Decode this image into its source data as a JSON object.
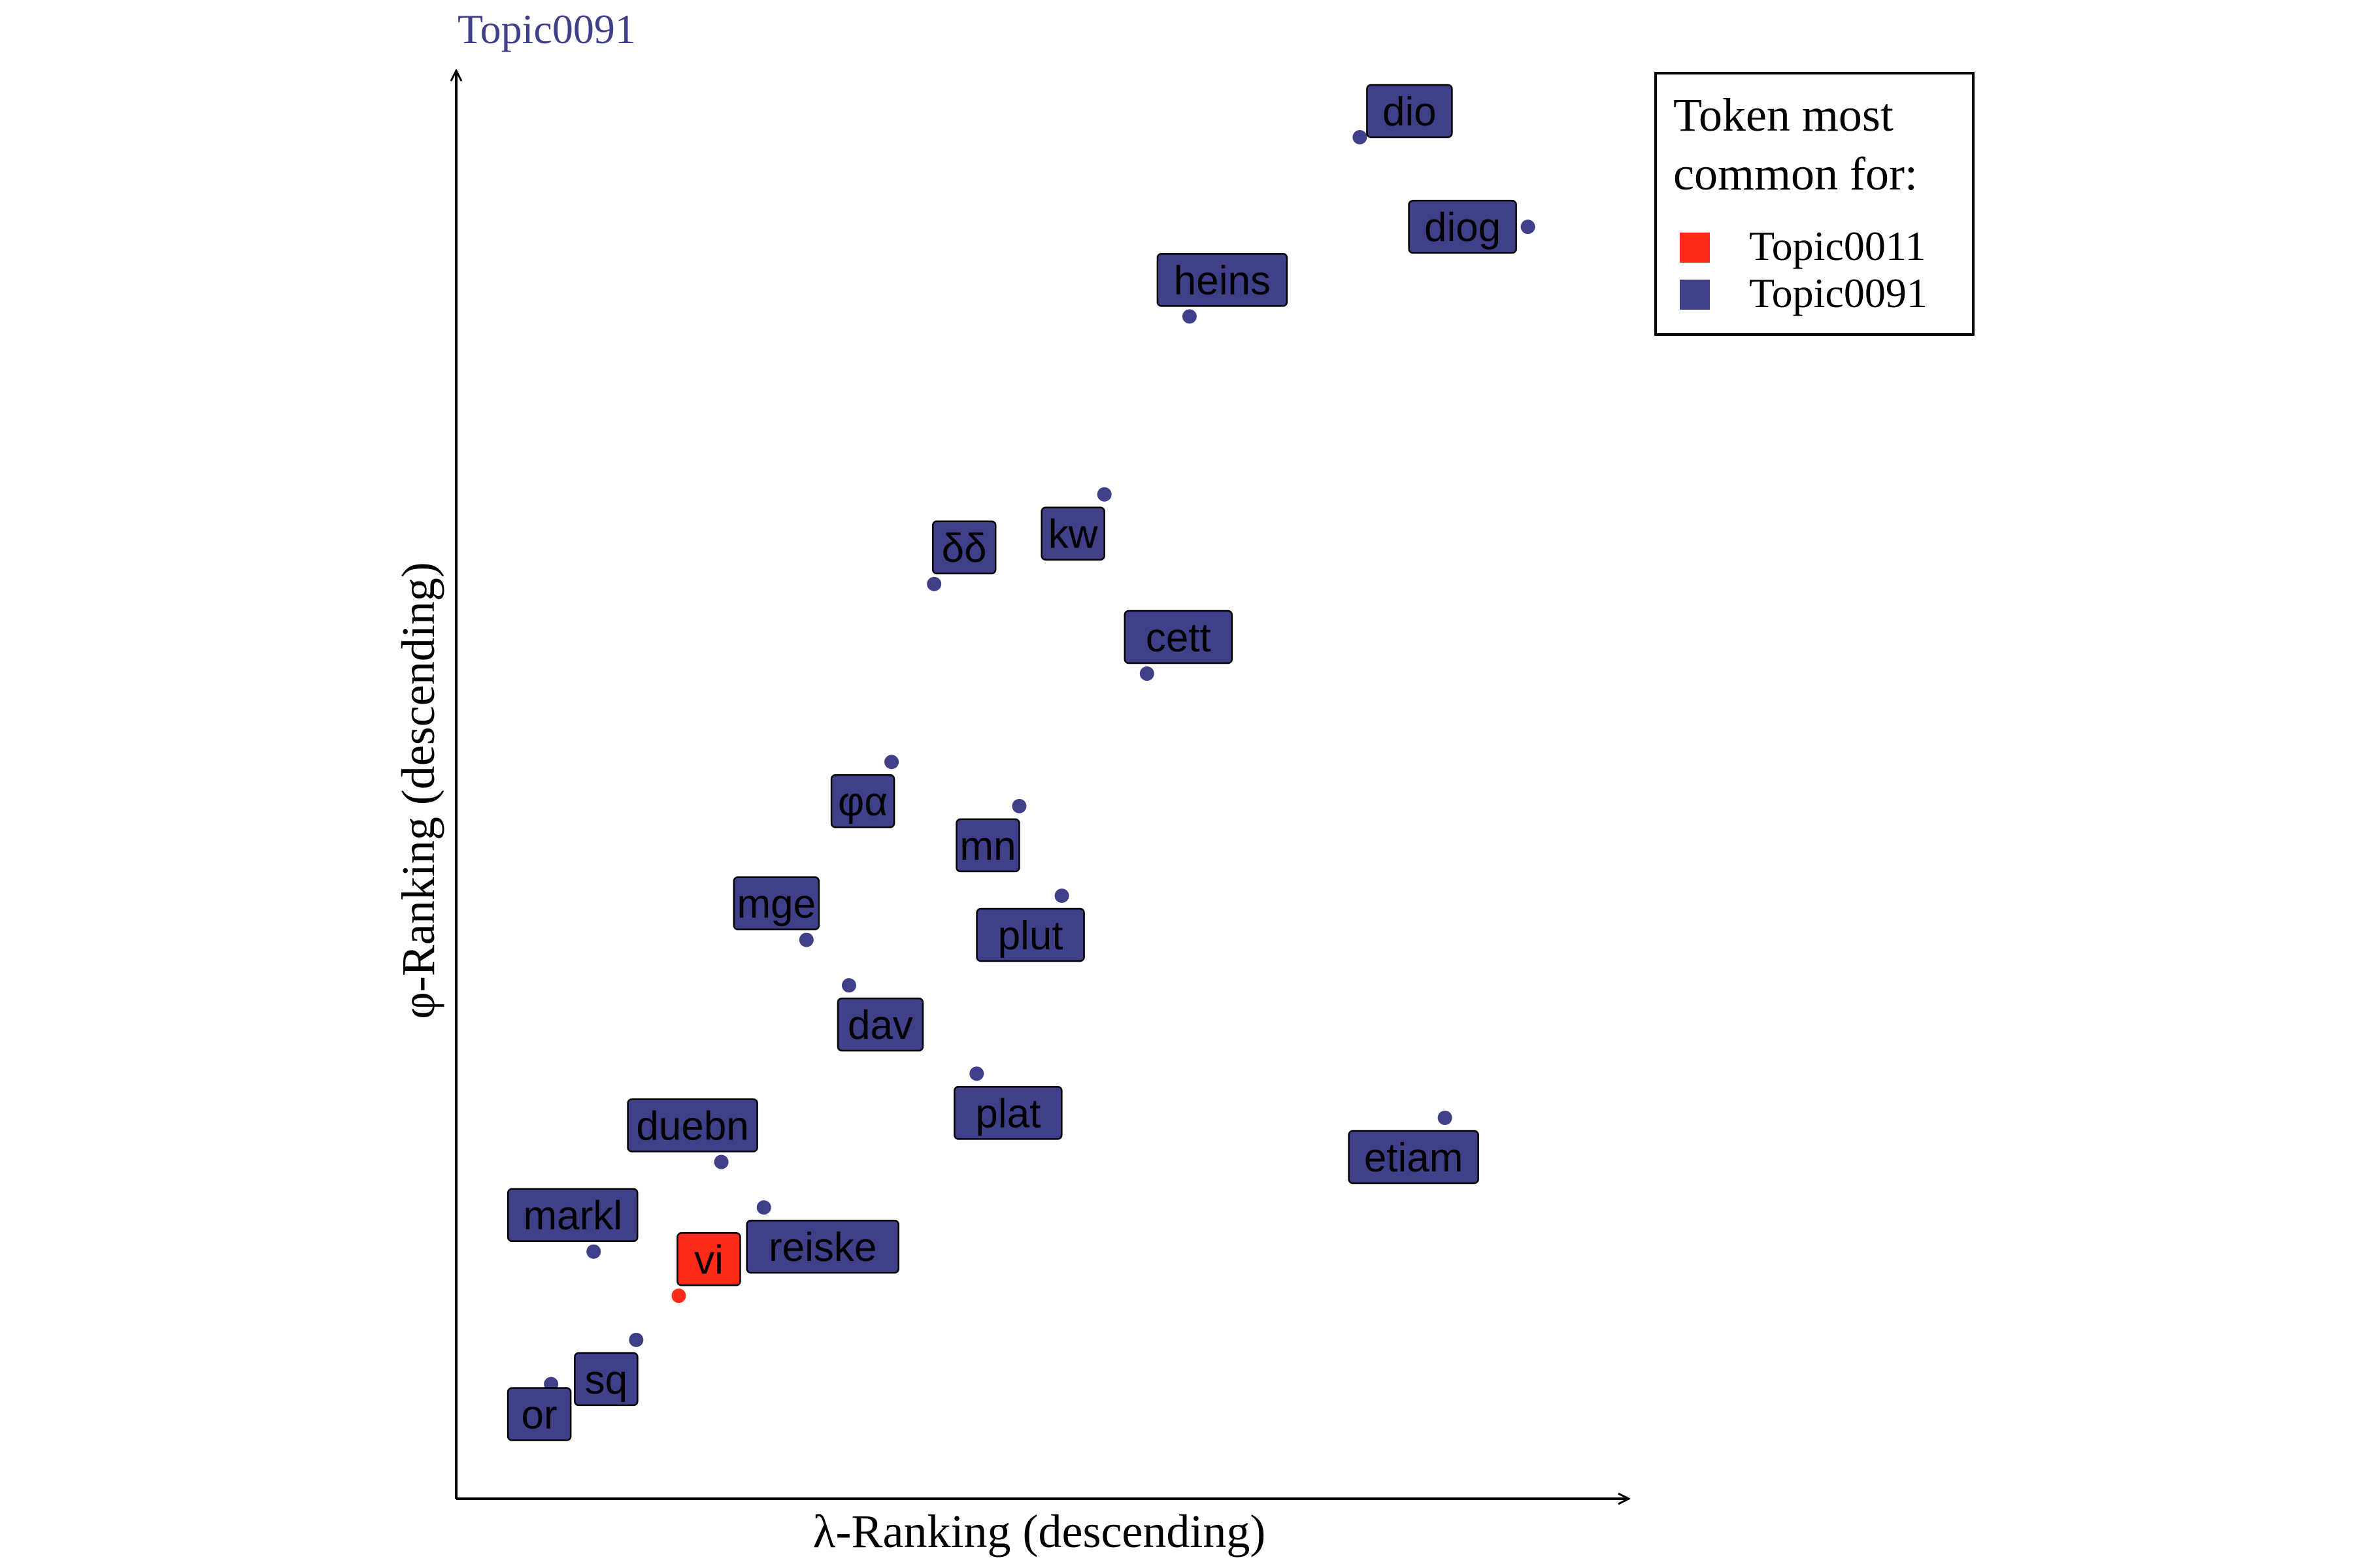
{
  "chart_data": {
    "type": "scatter",
    "title": "Topic0091",
    "xlabel": "λ-Ranking (descending)",
    "ylabel": "φ-Ranking (descending)",
    "xlim": [
      0,
      100
    ],
    "ylim": [
      0,
      100
    ],
    "legend": {
      "title_lines": [
        "Token most",
        "common for:"
      ],
      "placement": "top-right",
      "entries": [
        {
          "name": "Topic0011",
          "color": "#ff2a1a"
        },
        {
          "name": "Topic0091",
          "color": "#3f3f8a"
        }
      ]
    },
    "points": [
      {
        "label": "dio",
        "x": 80.0,
        "y": 100.0,
        "series": "Topic0091"
      },
      {
        "label": "diog",
        "x": 95.8,
        "y": 93.1,
        "series": "Topic0091"
      },
      {
        "label": "heins",
        "x": 64.0,
        "y": 86.2,
        "series": "Topic0091"
      },
      {
        "label": "kw",
        "x": 56.0,
        "y": 72.5,
        "series": "Topic0091"
      },
      {
        "label": "δδ",
        "x": 40.0,
        "y": 65.6,
        "series": "Topic0091"
      },
      {
        "label": "cett",
        "x": 60.0,
        "y": 58.7,
        "series": "Topic0091"
      },
      {
        "label": "φα",
        "x": 36.0,
        "y": 51.9,
        "series": "Topic0091"
      },
      {
        "label": "mn",
        "x": 48.0,
        "y": 48.5,
        "series": "Topic0091"
      },
      {
        "label": "mge",
        "x": 28.0,
        "y": 38.2,
        "series": "Topic0091"
      },
      {
        "label": "plut",
        "x": 52.0,
        "y": 41.6,
        "series": "Topic0091"
      },
      {
        "label": "dav",
        "x": 32.0,
        "y": 34.7,
        "series": "Topic0091"
      },
      {
        "label": "plat",
        "x": 44.0,
        "y": 27.9,
        "series": "Topic0091"
      },
      {
        "label": "etiam",
        "x": 88.0,
        "y": 24.5,
        "series": "Topic0091"
      },
      {
        "label": "duebn",
        "x": 20.0,
        "y": 21.1,
        "series": "Topic0091"
      },
      {
        "label": "reiske",
        "x": 24.0,
        "y": 17.6,
        "series": "Topic0091"
      },
      {
        "label": "markl",
        "x": 8.0,
        "y": 14.2,
        "series": "Topic0091"
      },
      {
        "label": "vi",
        "x": 16.0,
        "y": 10.8,
        "series": "Topic0011"
      },
      {
        "label": "sq",
        "x": 12.0,
        "y": 7.4,
        "series": "Topic0091"
      },
      {
        "label": "or",
        "x": 4.0,
        "y": 4.0,
        "series": "Topic0091"
      }
    ]
  }
}
